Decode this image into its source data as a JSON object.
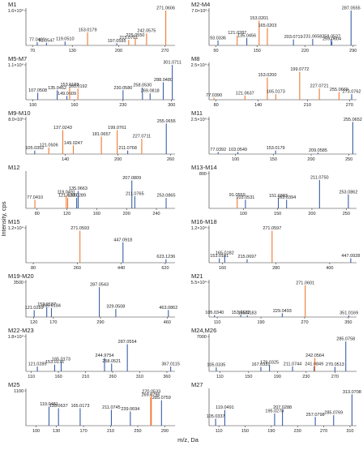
{
  "y_label": "Intensity, cps",
  "x_label": "m/z, Da",
  "chart_data": [
    {
      "type": "stick",
      "title": "M1",
      "xlim": [
        60,
        285
      ],
      "xticks": [
        70,
        130,
        200,
        270
      ],
      "ylim": [
        0,
        16000
      ],
      "yticks": [
        {
          "value": 16000,
          "label": "1.6×10⁴"
        }
      ],
      "x": [
        77.04,
        91.0547,
        119.051,
        153.0179,
        197.0595,
        215.0701,
        225.055,
        242.0575,
        271.0606
      ],
      "x_labels": [
        "77.0400",
        "91.0547",
        "119.0510",
        "153.0179",
        "197.0595",
        "215.0701",
        "225.0550",
        "242.0575",
        "271.0606"
      ],
      "values": [
        1500,
        1200,
        1800,
        6000,
        1000,
        2500,
        3500,
        5500,
        16000
      ],
      "colors": [
        "#3a5fa8",
        "#3a5fa8",
        "#3a5fa8",
        "#f07830",
        "#3a5fa8",
        "#f07830",
        "#f07830",
        "#f07830",
        "#f07830"
      ]
    },
    {
      "type": "stick",
      "title": "M2-M4",
      "xlim": [
        80,
        295
      ],
      "xticks": [
        90,
        150,
        220,
        290
      ],
      "ylim": [
        0,
        7000
      ],
      "yticks": [
        {
          "value": 7000,
          "label": "7.0×10³"
        }
      ],
      "x": [
        93.0336,
        121.0287,
        135.0456,
        153.0201,
        165.0203,
        203.0719,
        231.0658,
        258.0527,
        259.0604,
        287.0555
      ],
      "x_labels": [
        "93.0336",
        "121.0287",
        "135.0456",
        "153.0201",
        "165.0203",
        "203.0719",
        "231.0658",
        "258.0527",
        "259.0604",
        "287.0555"
      ],
      "values": [
        1000,
        2000,
        1500,
        5000,
        3500,
        1200,
        1300,
        1300,
        800,
        7000
      ],
      "colors": [
        "#3a5fa8",
        "#f07830",
        "#3a5fa8",
        "#f07830",
        "#f07830",
        "#3a5fa8",
        "#3a5fa8",
        "#3a5fa8",
        "#3a5fa8",
        "#3a5fa8"
      ]
    },
    {
      "type": "stick",
      "title": "M5-M7",
      "xlim": [
        90,
        305
      ],
      "xticks": [
        100,
        160,
        230,
        300
      ],
      "ylim": [
        0,
        11000
      ],
      "yticks": [
        {
          "value": 11000,
          "label": "1.1×10⁴"
        }
      ],
      "x": [
        107.0508,
        135.0452,
        149.0609,
        153.0188,
        165.0192,
        230.058,
        258.053,
        269.0818,
        288.048,
        301.0711
      ],
      "x_labels": [
        "107.0508",
        "135.0452",
        "149.0609",
        "153.0188",
        "165.0192",
        "230.0580",
        "258.0530",
        "269.0818",
        "288.0480",
        "301.0711"
      ],
      "values": [
        2200,
        3000,
        1200,
        4000,
        3500,
        3000,
        3800,
        2000,
        5500,
        11000
      ],
      "colors": [
        "#3a5fa8",
        "#3a5fa8",
        "#3a5fa8",
        "#f07830",
        "#f07830",
        "#3a5fa8",
        "#3a5fa8",
        "#3a5fa8",
        "#3a5fa8",
        "#3a5fa8"
      ]
    },
    {
      "type": "stick",
      "title": "M8",
      "xlim": [
        70,
        280
      ],
      "xticks": [
        80,
        140,
        210,
        270
      ],
      "ylim": [
        0,
        25000
      ],
      "yticks": [
        {
          "value": 25000,
          "label": "2.5×10⁴"
        }
      ],
      "x": [
        77.039,
        121.0637,
        153.02,
        165.0173,
        199.0772,
        227.0721,
        255.0669,
        273.0762
      ],
      "x_labels": [
        "77.0390",
        "121.0637",
        "153.0200",
        "165.0173",
        "199.0772",
        "227.0721",
        "255.0669",
        "273.0762"
      ],
      "values": [
        1500,
        3000,
        16000,
        4000,
        20000,
        8000,
        5500,
        4000
      ],
      "colors": [
        "#f07830",
        "#f07830",
        "#f07830",
        "#f07830",
        "#f07830",
        "#f07830",
        "#f07830",
        "#3a5fa8"
      ]
    },
    {
      "type": "stick",
      "title": "M9-M10",
      "xlim": [
        95,
        265
      ],
      "xticks": [
        140,
        200,
        260
      ],
      "ylim": [
        0,
        8000
      ],
      "yticks": [
        {
          "value": 8000,
          "label": "8.0×10³"
        }
      ],
      "x": [
        105.0352,
        121.0506,
        137.0243,
        149.0247,
        181.0657,
        199.0761,
        211.0768,
        227.0711,
        255.0655
      ],
      "x_labels": [
        "105.0352",
        "121.0506",
        "137.0243",
        "149.0247",
        "181.0657",
        "199.0761",
        "211.0768",
        "227.0711",
        "255.0655"
      ],
      "values": [
        800,
        1500,
        5500,
        2000,
        4000,
        5500,
        800,
        3500,
        7000
      ],
      "colors": [
        "#3a5fa8",
        "#f07830",
        "#f07830",
        "#f07830",
        "#f07830",
        "#f07830",
        "#3a5fa8",
        "#f07830",
        "#3a5fa8"
      ]
    },
    {
      "type": "stick",
      "title": "M11",
      "xlim": [
        65,
        260
      ],
      "xticks": [
        100,
        150,
        200,
        250
      ],
      "ylim": [
        0,
        25000
      ],
      "yticks": [
        {
          "value": 25000,
          "label": "2.5×10⁴"
        }
      ],
      "x": [
        77.0392,
        103.0549,
        153.0179,
        209.0585,
        255.0652
      ],
      "x_labels": [
        "77.0392",
        "103.0549",
        "153.0179",
        "209.0585",
        "255.0652"
      ],
      "values": [
        1500,
        1500,
        2500,
        1000,
        23000
      ],
      "colors": [
        "#3a5fa8",
        "#3a5fa8",
        "#3a5fa8",
        "#3a5fa8",
        "#3a5fa8"
      ]
    },
    {
      "type": "stick",
      "title": "M12",
      "xlim": [
        65,
        265
      ],
      "xticks": [
        80,
        120,
        160,
        200,
        240
      ],
      "ylim": [
        0,
        100
      ],
      "yticks": [],
      "x": [
        77.041,
        119.0491,
        121.0288,
        133.0289,
        135.0663,
        207.0809,
        211.0765,
        253.0865
      ],
      "x_labels": [
        "77.0410",
        "119.0491",
        "121.0288",
        "133.0289",
        "135.0663",
        "207.0809",
        "211.0765",
        "253.0865"
      ],
      "values": [
        25,
        40,
        30,
        30,
        50,
        80,
        35,
        30
      ],
      "colors": [
        "#f07830",
        "#f07830",
        "#f07830",
        "#3a5fa8",
        "#3a5fa8",
        "#3a5fa8",
        "#3a5fa8",
        "#3a5fa8"
      ]
    },
    {
      "type": "stick",
      "title": "M13-M14",
      "xlim": [
        50,
        265
      ],
      "xticks": [
        100,
        150,
        200,
        250
      ],
      "ylim": [
        0,
        800
      ],
      "yticks": [
        800
      ],
      "x": [
        91.0559,
        103.0531,
        151.0383,
        163.0394,
        211.075,
        253.0862
      ],
      "x_labels": [
        "91.0559",
        "103.0531",
        "151.0383",
        "163.0394",
        "211.0750",
        "253.0862"
      ],
      "values": [
        250,
        200,
        230,
        200,
        650,
        320
      ],
      "colors": [
        "#f07830",
        "#3a5fa8",
        "#3a5fa8",
        "#3a5fa8",
        "#3a5fa8",
        "#3a5fa8"
      ]
    },
    {
      "type": "stick",
      "title": "M15",
      "xlim": [
        50,
        660
      ],
      "xticks": [
        80,
        260,
        440,
        620
      ],
      "ylim": [
        0,
        12000
      ],
      "yticks": [
        {
          "value": 12000,
          "label": "1.2×10⁴"
        }
      ],
      "x": [
        271.0593,
        447.0918,
        623.1236
      ],
      "x_labels": [
        "271.0593",
        "447.0918",
        "623.1236"
      ],
      "values": [
        11000,
        7000,
        1200
      ],
      "colors": [
        "#f07830",
        "#3a5fa8",
        "#3a5fa8"
      ]
    },
    {
      "type": "stick",
      "title": "M16-M18",
      "xlim": [
        130,
        460
      ],
      "xticks": [
        160,
        280,
        400
      ],
      "ylim": [
        0,
        12000
      ],
      "yticks": [
        {
          "value": 12000,
          "label": "1.2×10⁴"
        }
      ],
      "x": [
        153.0181,
        165.0182,
        215.0697,
        271.0597,
        447.0928
      ],
      "x_labels": [
        "153.0181",
        "165.0182",
        "215.0697",
        "271.0597",
        "447.0928"
      ],
      "values": [
        1500,
        2500,
        1200,
        11000,
        1500
      ],
      "colors": [
        "#3a5fa8",
        "#3a5fa8",
        "#3a5fa8",
        "#f07830",
        "#3a5fa8"
      ]
    },
    {
      "type": "stick",
      "title": "M19-M20",
      "xlim": [
        100,
        480
      ],
      "xticks": [
        120,
        170,
        290,
        460
      ],
      "ylim": [
        0,
        3500
      ],
      "yticks": [
        3500
      ],
      "x": [
        121.0289,
        153.0187,
        165.0184,
        287.0543,
        329.0508,
        463.0862
      ],
      "x_labels": [
        "121.0289",
        "153.0187",
        "165.0184",
        "287.0543",
        "329.0508",
        "463.0862"
      ],
      "values": [
        700,
        1000,
        900,
        3000,
        800,
        700
      ],
      "colors": [
        "#3a5fa8",
        "#3a5fa8",
        "#3a5fa8",
        "#3a5fa8",
        "#3a5fa8",
        "#3a5fa8"
      ]
    },
    {
      "type": "stick",
      "title": "M21",
      "xlim": [
        95,
        365
      ],
      "xticks": [
        110,
        190,
        270,
        350
      ],
      "ylim": [
        0,
        55000
      ],
      "yticks": [
        {
          "value": 55000,
          "label": "5.5×10⁴"
        }
      ],
      "x": [
        105.034,
        153.0182,
        165.0183,
        229.0493,
        271.0601,
        351.0169
      ],
      "x_labels": [
        "105.0340",
        "153.0182",
        "165.0183",
        "229.0493",
        "271.0601",
        "351.0169"
      ],
      "values": [
        3000,
        3500,
        2500,
        6000,
        50000,
        2500
      ],
      "colors": [
        "#3a5fa8",
        "#3a5fa8",
        "#3a5fa8",
        "#3a5fa8",
        "#f07830",
        "#3a5fa8"
      ]
    },
    {
      "type": "stick",
      "title": "M22-M23",
      "xlim": [
        100,
        375
      ],
      "xticks": [
        110,
        160,
        210,
        260,
        310,
        360
      ],
      "ylim": [
        0,
        18000
      ],
      "yticks": [
        {
          "value": 18000,
          "label": "1.8×10⁴"
        }
      ],
      "x": [
        121.0285,
        153.0176,
        165.0173,
        244.9754,
        258.0521,
        287.0554,
        367.0115
      ],
      "x_labels": [
        "121.0285",
        "153.0176",
        "165.0173",
        "244.9754",
        "258.0521",
        "287.0554",
        "367.0115"
      ],
      "values": [
        2500,
        3500,
        5000,
        7000,
        4000,
        14000,
        2500
      ],
      "colors": [
        "#3a5fa8",
        "#3a5fa8",
        "#3a5fa8",
        "#3a5fa8",
        "#3a5fa8",
        "#3a5fa8",
        "#3a5fa8"
      ]
    },
    {
      "type": "stick",
      "title": "M24,M26",
      "xlim": [
        95,
        300
      ],
      "xticks": [
        110,
        150,
        190,
        230,
        270
      ],
      "ylim": [
        0,
        7000
      ],
      "yticks": [
        7000
      ],
      "x": [
        105.0335,
        167.0331,
        179.0325,
        211.0744,
        241.0849,
        242.0564,
        270.0513,
        285.0758
      ],
      "x_labels": [
        "105.0335",
        "167.0331",
        "179.0325",
        "211.0744",
        "241.0849",
        "242.0564",
        "270.0513",
        "285.0758"
      ],
      "values": [
        800,
        900,
        1300,
        1000,
        1000,
        2700,
        900,
        6000
      ],
      "colors": [
        "#3a5fa8",
        "#3a5fa8",
        "#3a5fa8",
        "#3a5fa8",
        "#3a5fa8",
        "#f07830",
        "#3a5fa8",
        "#3a5fa8"
      ]
    },
    {
      "type": "stick",
      "title": "M25",
      "xlim": [
        85,
        305
      ],
      "xticks": [
        100,
        130,
        170,
        210,
        250,
        290
      ],
      "ylim": [
        0,
        1100
      ],
      "yticks": [
        1100
      ],
      "x": [
        119.0481,
        133.0637,
        165.0173,
        211.0745,
        239.0694,
        269.0796,
        270.0533,
        285.0759
      ],
      "x_labels": [
        "119.0481",
        "133.0637",
        "165.0173",
        "211.0745",
        "239.0694",
        "269.0796",
        "270.0533",
        "285.0759"
      ],
      "values": [
        600,
        550,
        550,
        500,
        450,
        900,
        1000,
        800
      ],
      "colors": [
        "#3a5fa8",
        "#3a5fa8",
        "#3a5fa8",
        "#3a5fa8",
        "#3a5fa8",
        "#f07830",
        "#f07830",
        "#3a5fa8"
      ]
    },
    {
      "type": "stick",
      "title": "M27",
      "xlim": [
        95,
        320
      ],
      "xticks": [
        110,
        150,
        190,
        230,
        270,
        310
      ],
      "ylim": [
        0,
        100
      ],
      "yticks": [],
      "x": [
        105.0337,
        119.0491,
        195.0278,
        207.0288,
        257.0798,
        285.0769,
        313.0708
      ],
      "x_labels": [
        "105.0337",
        "119.0491",
        "195.0278",
        "207.0288",
        "257.0798",
        "285.0769",
        "313.0708"
      ],
      "values": [
        20,
        45,
        35,
        45,
        25,
        30,
        90
      ],
      "colors": [
        "#3a5fa8",
        "#3a5fa8",
        "#3a5fa8",
        "#3a5fa8",
        "#3a5fa8",
        "#3a5fa8",
        "#3a5fa8"
      ]
    }
  ]
}
